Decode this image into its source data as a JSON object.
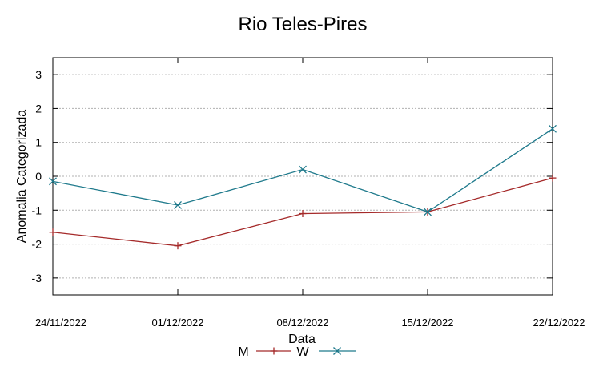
{
  "chart_data": {
    "type": "line",
    "title": "Rio Teles-Pires",
    "xlabel": "Data",
    "ylabel": "Anomalia Categorizada",
    "categories": [
      "24/11/2022",
      "01/12/2022",
      "08/12/2022",
      "15/12/2022",
      "22/12/2022"
    ],
    "yticks": [
      "3",
      "2",
      "1",
      "0",
      "-1",
      "-2",
      "-3"
    ],
    "ylim": [
      -3.5,
      3.5
    ],
    "grid": true,
    "legend_position": "bottom-center",
    "series": [
      {
        "name": "M",
        "marker": "plus",
        "color": "#a52a2a",
        "values": [
          -1.65,
          -2.05,
          -1.1,
          -1.05,
          -0.05
        ]
      },
      {
        "name": "W",
        "marker": "x",
        "color": "#1f7a8c",
        "values": [
          -0.15,
          -0.85,
          0.2,
          -1.05,
          1.4
        ]
      }
    ]
  }
}
